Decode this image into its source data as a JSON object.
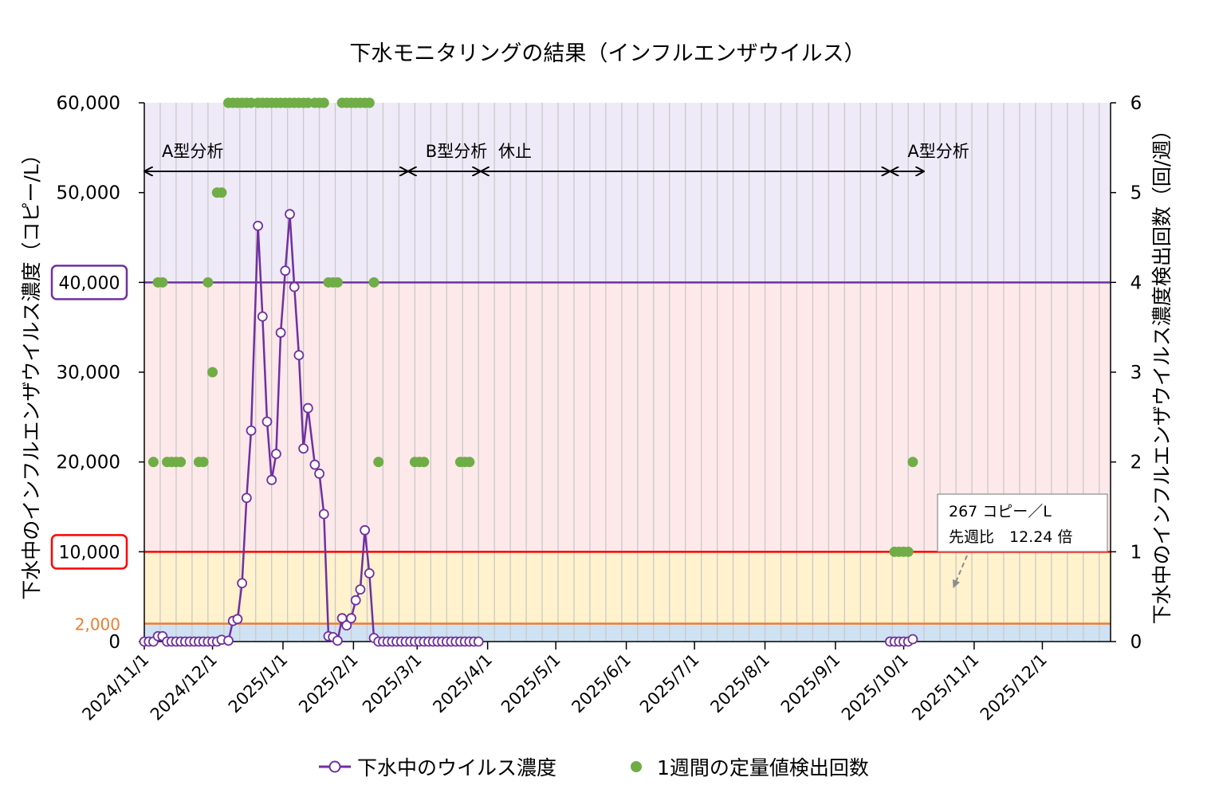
{
  "chart_data": {
    "type": "line",
    "title": "下水モニタリングの結果（インフルエンザウイルス）",
    "ylabel_left": "下水中のインフルエンザウイルス濃度（コピー/L）",
    "ylabel_right": "下水中のインフルエンザウイルス濃度検出回数（回/週）",
    "ylim_left": [
      0,
      60000
    ],
    "ylim_right": [
      0,
      6
    ],
    "xlim": [
      "2024-11-01",
      "2025-12-31"
    ],
    "y_ticks_left": [
      "0",
      "10,000",
      "20,000",
      "30,000",
      "40,000",
      "50,000",
      "60,000"
    ],
    "y_ticks_right": [
      "0",
      "1",
      "2",
      "3",
      "4",
      "5",
      "6"
    ],
    "x_ticks": [
      "2024/11/1",
      "2024/12/1",
      "2025/1/1",
      "2025/2/1",
      "2025/3/1",
      "2025/4/1",
      "2025/5/1",
      "2025/6/1",
      "2025/7/1",
      "2025/8/1",
      "2025/9/1",
      "2025/10/1",
      "2025/11/1",
      "2025/12/1"
    ],
    "grid": "vertical",
    "legend_position": "bottom",
    "bands": [
      {
        "from": 0,
        "to": 2000,
        "color": "#cfe2f3"
      },
      {
        "from": 2000,
        "to": 10000,
        "color": "#fff2cc"
      },
      {
        "from": 10000,
        "to": 40000,
        "color": "#fde9ea"
      },
      {
        "from": 40000,
        "to": 60000,
        "color": "#efeaf7"
      }
    ],
    "thresholds": [
      {
        "value": 2000,
        "label": "2,000",
        "color": "#ed7d31"
      },
      {
        "value": 10000,
        "label": "10,000",
        "color": "#ff0000",
        "boxed": true
      },
      {
        "value": 40000,
        "label": "40,000",
        "color": "#7030a0",
        "boxed": true
      }
    ],
    "annotations": [
      {
        "label": "A型分析",
        "from": "2024-11-01",
        "to": "2025-02-25"
      },
      {
        "label": "B型分析",
        "from": "2025-02-25",
        "to": "2025-03-29"
      },
      {
        "label": "休止",
        "from": "2025-03-29",
        "to": "2025-09-25"
      },
      {
        "label": "A型分析",
        "from": "2025-09-25",
        "to": "2025-10-10"
      }
    ],
    "callout": {
      "line1": "267 コピー／L",
      "line2": "先週比　12.24 倍"
    },
    "series": [
      {
        "name": "下水中のウイルス濃度",
        "axis": "left",
        "color": "#7030a0",
        "segments": [
          [
            {
              "x": "2024-11-01",
              "y": 0
            },
            {
              "x": "2024-11-03",
              "y": 0
            },
            {
              "x": "2024-11-05",
              "y": 0
            },
            {
              "x": "2024-11-07",
              "y": 600
            },
            {
              "x": "2024-11-09",
              "y": 600
            },
            {
              "x": "2024-11-11",
              "y": 0
            },
            {
              "x": "2024-11-13",
              "y": 0
            },
            {
              "x": "2024-11-15",
              "y": 0
            },
            {
              "x": "2024-11-17",
              "y": 0
            },
            {
              "x": "2024-11-19",
              "y": 0
            },
            {
              "x": "2024-11-21",
              "y": 0
            },
            {
              "x": "2024-11-23",
              "y": 0
            },
            {
              "x": "2024-11-25",
              "y": 0
            },
            {
              "x": "2024-11-27",
              "y": 0
            },
            {
              "x": "2024-11-29",
              "y": 0
            },
            {
              "x": "2024-12-01",
              "y": 0
            },
            {
              "x": "2024-12-03",
              "y": 0
            },
            {
              "x": "2024-12-05",
              "y": 200
            },
            {
              "x": "2024-12-08",
              "y": 100
            },
            {
              "x": "2024-12-10",
              "y": 2300
            },
            {
              "x": "2024-12-12",
              "y": 2500
            },
            {
              "x": "2024-12-14",
              "y": 6500
            },
            {
              "x": "2024-12-16",
              "y": 16000
            },
            {
              "x": "2024-12-18",
              "y": 23500
            },
            {
              "x": "2024-12-21",
              "y": 46300
            },
            {
              "x": "2024-12-23",
              "y": 36200
            },
            {
              "x": "2024-12-25",
              "y": 24500
            },
            {
              "x": "2024-12-27",
              "y": 18000
            },
            {
              "x": "2024-12-29",
              "y": 20900
            },
            {
              "x": "2024-12-31",
              "y": 34400
            },
            {
              "x": "2025-01-02",
              "y": 41300
            },
            {
              "x": "2025-01-04",
              "y": 47600
            },
            {
              "x": "2025-01-06",
              "y": 39500
            },
            {
              "x": "2025-01-08",
              "y": 31900
            },
            {
              "x": "2025-01-10",
              "y": 21500
            },
            {
              "x": "2025-01-12",
              "y": 26000
            },
            {
              "x": "2025-01-15",
              "y": 19700
            },
            {
              "x": "2025-01-17",
              "y": 18700
            },
            {
              "x": "2025-01-19",
              "y": 14200
            },
            {
              "x": "2025-01-21",
              "y": 600
            },
            {
              "x": "2025-01-23",
              "y": 500
            },
            {
              "x": "2025-01-25",
              "y": 100
            },
            {
              "x": "2025-01-27",
              "y": 2600
            },
            {
              "x": "2025-01-29",
              "y": 1800
            },
            {
              "x": "2025-01-31",
              "y": 2600
            },
            {
              "x": "2025-02-02",
              "y": 4600
            },
            {
              "x": "2025-02-04",
              "y": 5800
            },
            {
              "x": "2025-02-06",
              "y": 12400
            },
            {
              "x": "2025-02-08",
              "y": 7600
            },
            {
              "x": "2025-02-10",
              "y": 400
            },
            {
              "x": "2025-02-12",
              "y": 0
            },
            {
              "x": "2025-02-14",
              "y": 0
            },
            {
              "x": "2025-02-16",
              "y": 0
            },
            {
              "x": "2025-02-18",
              "y": 0
            },
            {
              "x": "2025-02-20",
              "y": 0
            },
            {
              "x": "2025-02-22",
              "y": 0
            },
            {
              "x": "2025-02-24",
              "y": 0
            },
            {
              "x": "2025-02-26",
              "y": 0
            },
            {
              "x": "2025-02-28",
              "y": 0
            },
            {
              "x": "2025-03-02",
              "y": 0
            },
            {
              "x": "2025-03-04",
              "y": 0
            },
            {
              "x": "2025-03-06",
              "y": 0
            },
            {
              "x": "2025-03-08",
              "y": 0
            },
            {
              "x": "2025-03-10",
              "y": 0
            },
            {
              "x": "2025-03-12",
              "y": 0
            },
            {
              "x": "2025-03-14",
              "y": 0
            },
            {
              "x": "2025-03-16",
              "y": 0
            },
            {
              "x": "2025-03-18",
              "y": 0
            },
            {
              "x": "2025-03-20",
              "y": 0
            },
            {
              "x": "2025-03-22",
              "y": 0
            },
            {
              "x": "2025-03-24",
              "y": 0
            },
            {
              "x": "2025-03-26",
              "y": 0
            },
            {
              "x": "2025-03-28",
              "y": 0
            }
          ],
          [
            {
              "x": "2025-09-25",
              "y": 0
            },
            {
              "x": "2025-09-27",
              "y": 0
            },
            {
              "x": "2025-09-29",
              "y": 0
            },
            {
              "x": "2025-10-01",
              "y": 0
            },
            {
              "x": "2025-10-03",
              "y": 0
            },
            {
              "x": "2025-10-05",
              "y": 267
            }
          ]
        ]
      },
      {
        "name": "1週間の定量値検出回数",
        "axis": "right",
        "color": "#70ad47",
        "points": [
          {
            "x": "2024-11-05",
            "y": 2
          },
          {
            "x": "2024-11-07",
            "y": 4
          },
          {
            "x": "2024-11-09",
            "y": 4
          },
          {
            "x": "2024-11-11",
            "y": 2
          },
          {
            "x": "2024-11-13",
            "y": 2
          },
          {
            "x": "2024-11-15",
            "y": 2
          },
          {
            "x": "2024-11-17",
            "y": 2
          },
          {
            "x": "2024-11-25",
            "y": 2
          },
          {
            "x": "2024-11-27",
            "y": 2
          },
          {
            "x": "2024-11-29",
            "y": 4
          },
          {
            "x": "2024-12-01",
            "y": 3
          },
          {
            "x": "2024-12-03",
            "y": 5
          },
          {
            "x": "2024-12-05",
            "y": 5
          },
          {
            "x": "2024-12-08",
            "y": 6
          },
          {
            "x": "2024-12-10",
            "y": 6
          },
          {
            "x": "2024-12-12",
            "y": 6
          },
          {
            "x": "2024-12-14",
            "y": 6
          },
          {
            "x": "2024-12-16",
            "y": 6
          },
          {
            "x": "2024-12-18",
            "y": 6
          },
          {
            "x": "2024-12-21",
            "y": 6
          },
          {
            "x": "2024-12-23",
            "y": 6
          },
          {
            "x": "2024-12-25",
            "y": 6
          },
          {
            "x": "2024-12-27",
            "y": 6
          },
          {
            "x": "2024-12-29",
            "y": 6
          },
          {
            "x": "2024-12-31",
            "y": 6
          },
          {
            "x": "2025-01-02",
            "y": 6
          },
          {
            "x": "2025-01-04",
            "y": 6
          },
          {
            "x": "2025-01-06",
            "y": 6
          },
          {
            "x": "2025-01-08",
            "y": 6
          },
          {
            "x": "2025-01-10",
            "y": 6
          },
          {
            "x": "2025-01-12",
            "y": 6
          },
          {
            "x": "2025-01-15",
            "y": 6
          },
          {
            "x": "2025-01-17",
            "y": 6
          },
          {
            "x": "2025-01-19",
            "y": 6
          },
          {
            "x": "2025-01-21",
            "y": 4
          },
          {
            "x": "2025-01-23",
            "y": 4
          },
          {
            "x": "2025-01-25",
            "y": 4
          },
          {
            "x": "2025-01-27",
            "y": 6
          },
          {
            "x": "2025-01-29",
            "y": 6
          },
          {
            "x": "2025-01-31",
            "y": 6
          },
          {
            "x": "2025-02-02",
            "y": 6
          },
          {
            "x": "2025-02-04",
            "y": 6
          },
          {
            "x": "2025-02-06",
            "y": 6
          },
          {
            "x": "2025-02-08",
            "y": 6
          },
          {
            "x": "2025-02-10",
            "y": 4
          },
          {
            "x": "2025-02-12",
            "y": 2
          },
          {
            "x": "2025-02-28",
            "y": 2
          },
          {
            "x": "2025-03-02",
            "y": 2
          },
          {
            "x": "2025-03-04",
            "y": 2
          },
          {
            "x": "2025-03-20",
            "y": 2
          },
          {
            "x": "2025-03-22",
            "y": 2
          },
          {
            "x": "2025-03-24",
            "y": 2
          },
          {
            "x": "2025-09-27",
            "y": 1
          },
          {
            "x": "2025-09-29",
            "y": 1
          },
          {
            "x": "2025-10-01",
            "y": 1
          },
          {
            "x": "2025-10-03",
            "y": 1
          },
          {
            "x": "2025-10-05",
            "y": 2
          }
        ]
      }
    ]
  }
}
